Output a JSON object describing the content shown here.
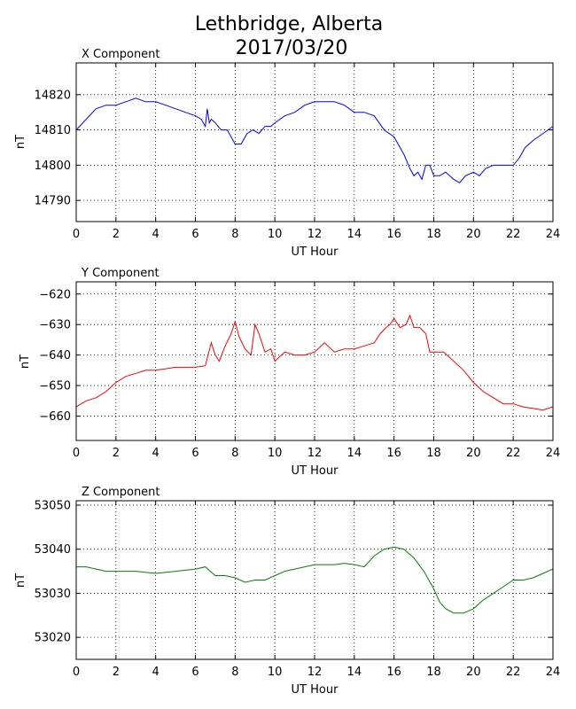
{
  "figure": {
    "title_line1": "Lethbridge, Alberta",
    "title_line2": "2017/03/20"
  },
  "chart_data": [
    {
      "type": "line",
      "title": "X Component",
      "xlabel": "UT Hour",
      "ylabel": "nT",
      "xlim": [
        0,
        24
      ],
      "ylim": [
        14784,
        14829
      ],
      "xticks": [
        0,
        2,
        4,
        6,
        8,
        10,
        12,
        14,
        16,
        18,
        20,
        22,
        24
      ],
      "yticks": [
        14790,
        14800,
        14810,
        14820
      ],
      "grid": true,
      "series": [
        {
          "color": "#0000ff",
          "x": [
            0,
            0.5,
            1,
            1.5,
            2,
            2.5,
            3,
            3.5,
            4,
            4.5,
            5,
            5.5,
            6,
            6.3,
            6.5,
            6.6,
            6.7,
            6.8,
            7,
            7.3,
            7.6,
            8,
            8.3,
            8.6,
            8.9,
            9.2,
            9.5,
            9.8,
            10,
            10.5,
            11,
            11.5,
            12,
            12.5,
            13,
            13.5,
            14,
            14.5,
            15,
            15.5,
            16,
            16.5,
            16.8,
            17,
            17.2,
            17.4,
            17.6,
            17.8,
            18,
            18.3,
            18.6,
            19,
            19.3,
            19.6,
            20,
            20.3,
            20.6,
            21,
            21.5,
            22,
            22.3,
            22.6,
            23,
            23.5,
            24
          ],
          "y": [
            14810,
            14813,
            14816,
            14817,
            14817,
            14818,
            14819,
            14818,
            14818,
            14817,
            14816,
            14815,
            14814,
            14813,
            14811,
            14816,
            14812,
            14813,
            14812,
            14810,
            14810,
            14806,
            14806,
            14809,
            14810,
            14809,
            14811,
            14811,
            14812,
            14814,
            14815,
            14817,
            14818,
            14818,
            14818,
            14817,
            14815,
            14815,
            14814,
            14810,
            14808,
            14803,
            14799,
            14797,
            14798,
            14796,
            14800,
            14800,
            14797,
            14797,
            14798,
            14796,
            14795,
            14797,
            14798,
            14797,
            14799,
            14800,
            14800,
            14800,
            14802,
            14805,
            14807,
            14809,
            14811
          ]
        }
      ]
    },
    {
      "type": "line",
      "title": "Y Component",
      "xlabel": "UT Hour",
      "ylabel": "nT",
      "xlim": [
        0,
        24
      ],
      "ylim": [
        -668,
        -616
      ],
      "xticks": [
        0,
        2,
        4,
        6,
        8,
        10,
        12,
        14,
        16,
        18,
        20,
        22,
        24
      ],
      "yticks": [
        -620,
        -630,
        -640,
        -650,
        -660
      ],
      "grid": true,
      "series": [
        {
          "color": "#ff0000",
          "x": [
            0,
            0.5,
            1,
            1.5,
            2,
            2.5,
            3,
            3.5,
            4,
            4.5,
            5,
            5.5,
            6,
            6.5,
            6.8,
            7,
            7.2,
            7.5,
            7.8,
            8,
            8.2,
            8.5,
            8.8,
            9,
            9.2,
            9.5,
            9.8,
            10,
            10.5,
            11,
            11.5,
            12,
            12.5,
            13,
            13.5,
            14,
            14.5,
            15,
            15.3,
            15.6,
            15.8,
            16,
            16.3,
            16.6,
            16.8,
            17,
            17.3,
            17.6,
            17.8,
            18,
            18.5,
            19,
            19.5,
            20,
            20.5,
            21,
            21.5,
            22,
            22.5,
            23,
            23.5,
            24
          ],
          "y": [
            -657,
            -655,
            -654,
            -652,
            -649,
            -647,
            -646,
            -645,
            -645,
            -644.5,
            -644,
            -644,
            -644,
            -643.5,
            -636,
            -640,
            -642,
            -637,
            -633,
            -629,
            -634,
            -638,
            -640,
            -630,
            -633,
            -639,
            -638,
            -642,
            -639,
            -640,
            -640,
            -639,
            -636,
            -639,
            -638,
            -638,
            -637,
            -636,
            -633,
            -631,
            -630,
            -628,
            -631,
            -630,
            -627,
            -631,
            -631,
            -633,
            -639,
            -639,
            -639,
            -642,
            -645,
            -649,
            -652,
            -654,
            -656,
            -656,
            -657,
            -657.5,
            -658,
            -657
          ]
        }
      ]
    },
    {
      "type": "line",
      "title": "Z Component",
      "xlabel": "UT Hour",
      "ylabel": "nT",
      "xlim": [
        0,
        24
      ],
      "ylim": [
        53015,
        53051
      ],
      "xticks": [
        0,
        2,
        4,
        6,
        8,
        10,
        12,
        14,
        16,
        18,
        20,
        22,
        24
      ],
      "yticks": [
        53020,
        53030,
        53040,
        53050
      ],
      "grid": true,
      "series": [
        {
          "color": "#008000",
          "x": [
            0,
            0.5,
            1,
            1.5,
            2,
            3,
            4,
            5,
            6,
            6.5,
            7,
            7.5,
            8,
            8.5,
            9,
            9.5,
            10,
            10.5,
            11,
            11.5,
            12,
            12.5,
            13,
            13.5,
            14,
            14.5,
            15,
            15.5,
            16,
            16.5,
            17,
            17.5,
            18,
            18.3,
            18.6,
            19,
            19.5,
            20,
            20.5,
            21,
            21.5,
            22,
            22.5,
            23,
            23.5,
            24
          ],
          "y": [
            53036,
            53036,
            53035.5,
            53035,
            53035,
            53035,
            53034.5,
            53035,
            53035.5,
            53036,
            53034,
            53034,
            53033.5,
            53032.5,
            53033,
            53033,
            53034,
            53035,
            53035.5,
            53036,
            53036.5,
            53036.5,
            53036.5,
            53036.8,
            53036.5,
            53036,
            53038.5,
            53040,
            53040.5,
            53040,
            53038,
            53035,
            53031,
            53028,
            53026.5,
            53025.5,
            53025.5,
            53026.5,
            53028.5,
            53030,
            53031.5,
            53033,
            53033,
            53033.5,
            53034.5,
            53035.5
          ]
        }
      ]
    }
  ]
}
